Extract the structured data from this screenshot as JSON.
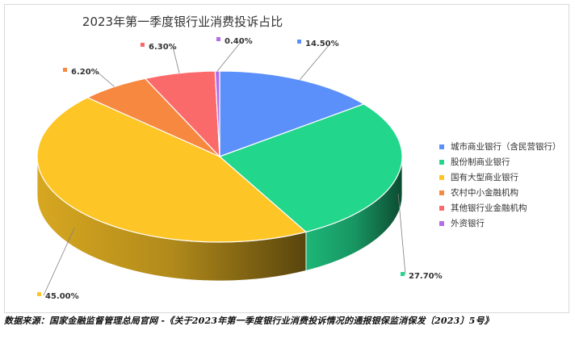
{
  "chart_data": {
    "type": "pie",
    "title": "2023年第一季度银行业消费投诉占比",
    "legend_position": "right",
    "slices": [
      {
        "name": "城市商业银行（含民营银行）",
        "value": 14.5,
        "label": "14.50%",
        "color": "#5b8ff9"
      },
      {
        "name": "股份制商业银行",
        "value": 27.7,
        "label": "27.70%",
        "color": "#22d68c"
      },
      {
        "name": "国有大型商业银行",
        "value": 45.0,
        "label": "45.00%",
        "color": "#fdc526"
      },
      {
        "name": "农村中小金融机构",
        "value": 6.2,
        "label": "6.20%",
        "color": "#f6883f"
      },
      {
        "name": "其他银行业金融机构",
        "value": 6.3,
        "label": "6.30%",
        "color": "#fb6a6a"
      },
      {
        "name": "外资银行",
        "value": 0.4,
        "label": "0.40%",
        "color": "#b56ce8"
      }
    ]
  },
  "source_note": "数据来源：国家金融监督管理总局官网 -《关于2023年第一季度银行业消费投诉情况的通报银保监消保发〔2023〕5号》"
}
